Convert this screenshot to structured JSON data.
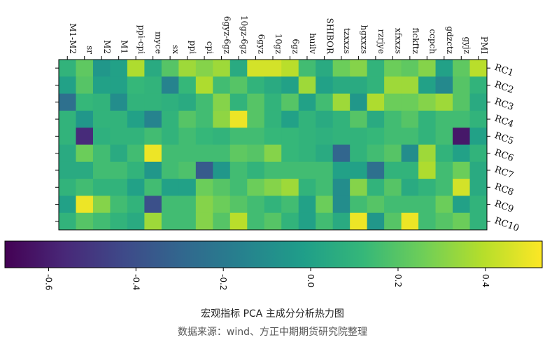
{
  "chart_data": {
    "type": "heatmap",
    "title": "宏观指标 PCA 主成分分析热力图",
    "source": "数据来源：wind、方正中期期货研究院整理",
    "columns": [
      "M1-M2",
      "sr",
      "M2",
      "M1",
      "ppi-cpi",
      "myce",
      "sx",
      "ppi",
      "cpi",
      "6gyz-6gz",
      "10gz-6gz",
      "6gyz",
      "10gz",
      "6gz",
      "huilv",
      "SHIBOR",
      "tzxxzs",
      "hgxxzs",
      "rzrjye",
      "xfxxzs",
      "fickftz",
      "ccpch",
      "gdzctz",
      "gyjz",
      "PMI"
    ],
    "rows": [
      "RC1",
      "RC2",
      "RC3",
      "RC4",
      "RC5",
      "RC6",
      "RC7",
      "RC8",
      "RC9",
      "RC10"
    ],
    "values": [
      [
        0.1,
        0.22,
        -0.05,
        0.0,
        0.38,
        0.05,
        0.2,
        0.35,
        0.3,
        0.35,
        0.05,
        0.45,
        0.45,
        0.4,
        0.15,
        0.05,
        0.25,
        0.3,
        0.1,
        0.25,
        0.22,
        0.3,
        0.0,
        0.22,
        0.4
      ],
      [
        0.0,
        0.2,
        0.0,
        0.0,
        0.12,
        0.1,
        -0.15,
        0.12,
        0.38,
        0.15,
        0.2,
        0.1,
        0.05,
        0.0,
        0.35,
        0.0,
        0.05,
        0.05,
        0.1,
        0.35,
        0.35,
        0.0,
        -0.12,
        0.2,
        0.1
      ],
      [
        -0.25,
        0.12,
        0.1,
        -0.1,
        0.1,
        0.1,
        0.08,
        0.05,
        0.15,
        0.3,
        0.1,
        0.2,
        0.1,
        0.2,
        0.0,
        0.15,
        0.35,
        -0.05,
        0.38,
        0.25,
        0.25,
        0.3,
        0.35,
        0.2,
        0.05
      ],
      [
        0.1,
        -0.05,
        0.1,
        0.1,
        0.0,
        -0.15,
        0.1,
        0.2,
        0.15,
        0.32,
        0.5,
        0.2,
        0.1,
        0.0,
        0.1,
        0.05,
        0.1,
        0.2,
        0.05,
        0.15,
        0.2,
        0.1,
        0.15,
        0.15,
        0.1
      ],
      [
        0.1,
        -0.55,
        0.08,
        0.1,
        0.1,
        0.15,
        0.1,
        0.15,
        0.12,
        0.1,
        0.15,
        0.15,
        0.12,
        0.12,
        0.1,
        0.08,
        0.1,
        0.1,
        0.12,
        0.15,
        0.15,
        0.1,
        0.15,
        -0.62,
        0.0
      ],
      [
        0.05,
        0.25,
        0.15,
        0.05,
        0.15,
        0.5,
        0.15,
        0.15,
        0.15,
        0.15,
        0.22,
        0.2,
        0.3,
        0.12,
        0.1,
        0.05,
        -0.3,
        0.1,
        0.15,
        0.2,
        -0.1,
        0.35,
        0.1,
        0.0,
        0.1
      ],
      [
        0.05,
        0.05,
        0.15,
        0.15,
        0.1,
        -0.05,
        0.15,
        0.18,
        -0.35,
        -0.05,
        0.15,
        0.1,
        0.15,
        0.15,
        0.15,
        0.15,
        0.0,
        0.0,
        -0.25,
        0.1,
        0.1,
        0.38,
        0.15,
        0.25,
        0.05
      ],
      [
        0.1,
        0.15,
        0.1,
        0.1,
        0.0,
        0.15,
        0.0,
        0.0,
        0.25,
        0.2,
        0.15,
        0.25,
        0.3,
        0.35,
        0.1,
        0.15,
        -0.1,
        0.3,
        0.1,
        0.2,
        0.05,
        0.1,
        0.15,
        0.45,
        0.05
      ],
      [
        0.0,
        0.5,
        0.3,
        0.15,
        0.1,
        -0.4,
        0.15,
        0.15,
        0.3,
        0.25,
        0.2,
        0.15,
        0.1,
        0.15,
        0.0,
        0.25,
        -0.1,
        0.15,
        0.2,
        0.15,
        0.15,
        0.15,
        0.25,
        0.0,
        0.1
      ],
      [
        0.1,
        0.2,
        0.15,
        0.1,
        0.05,
        0.35,
        0.15,
        0.15,
        0.3,
        0.2,
        0.4,
        0.15,
        0.2,
        0.1,
        0.0,
        0.15,
        0.05,
        0.5,
        -0.05,
        0.2,
        0.5,
        0.15,
        0.2,
        0.25,
        0.1
      ]
    ],
    "colorbar": {
      "min": -0.7,
      "max": 0.53,
      "ticks": [
        -0.6,
        -0.4,
        -0.2,
        0.0,
        0.2,
        0.4
      ],
      "tick_labels": [
        "-0.6",
        "-0.4",
        "-0.2",
        "0.0",
        "0.2",
        "0.4"
      ]
    },
    "colormap": "viridis"
  }
}
